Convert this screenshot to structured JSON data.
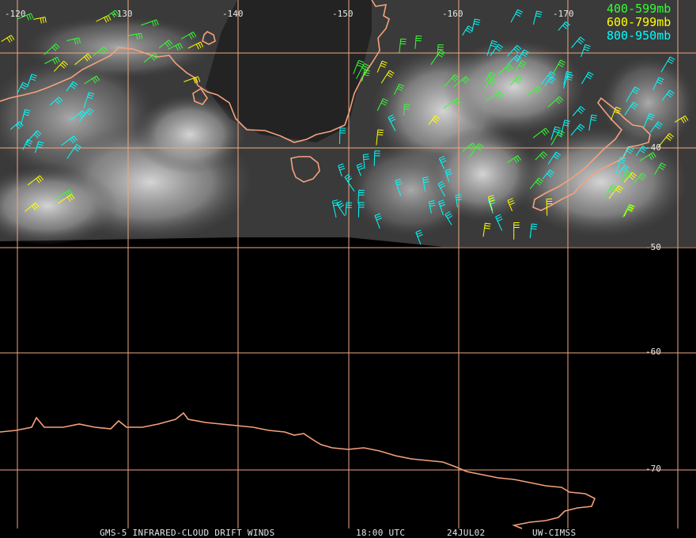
{
  "lon_labels": [
    "-120",
    "-130",
    "-140",
    "-150",
    "-160",
    "-170"
  ],
  "lat_labels": [
    "-40",
    "-50",
    "-60",
    "-70"
  ],
  "legend": [
    {
      "label": "400-599mb",
      "color": "#33ff33"
    },
    {
      "label": "600-799mb",
      "color": "#ffff00"
    },
    {
      "label": "800-950mb",
      "color": "#00ffff"
    }
  ],
  "footer": {
    "product": "GMS-5 INFRARED-CLOUD DRIFT WINDS",
    "time": "18:00 UTC",
    "date": "24JUL02",
    "credit": "UW-CIMSS"
  },
  "colors": {
    "grid": "#f0a882",
    "coast": "#f5a27c",
    "background": "#000000"
  }
}
